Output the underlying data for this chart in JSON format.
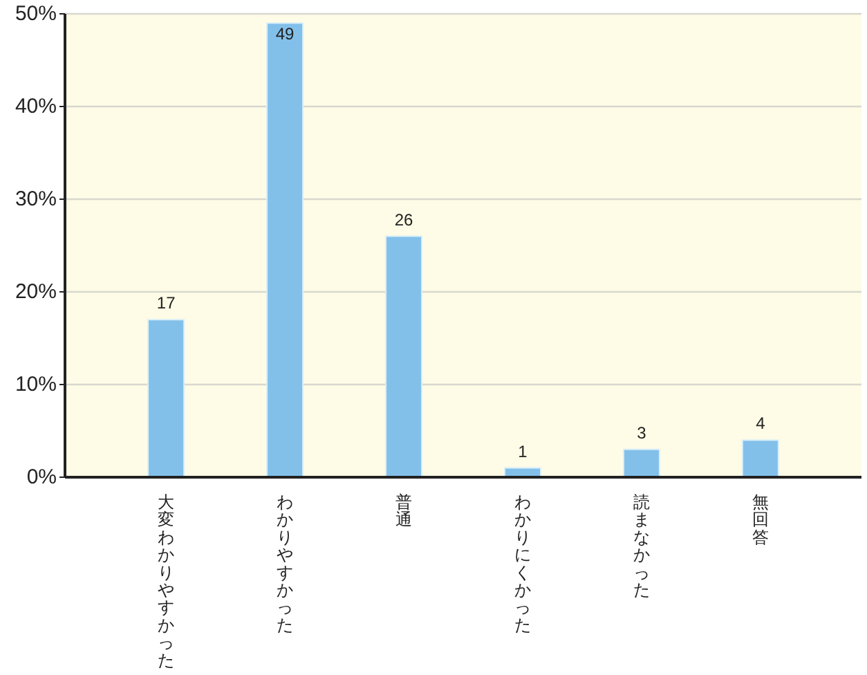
{
  "chart_data": {
    "type": "bar",
    "categories": [
      "大変わかりやすかった",
      "わかりやすかった",
      "普通",
      "わかりにくかった",
      "読まなかった",
      "無回答"
    ],
    "values": [
      17,
      49,
      26,
      1,
      3,
      4
    ],
    "color": "#82c0ea",
    "ylim": [
      0,
      50
    ],
    "yticks": [
      {
        "value": 0,
        "label": "0%"
      },
      {
        "value": 10,
        "label": "10%"
      },
      {
        "value": 20,
        "label": "20%"
      },
      {
        "value": 30,
        "label": "30%"
      },
      {
        "value": 40,
        "label": "40%"
      },
      {
        "value": 50,
        "label": "50%"
      }
    ],
    "grid": "y",
    "data_labels": true
  }
}
